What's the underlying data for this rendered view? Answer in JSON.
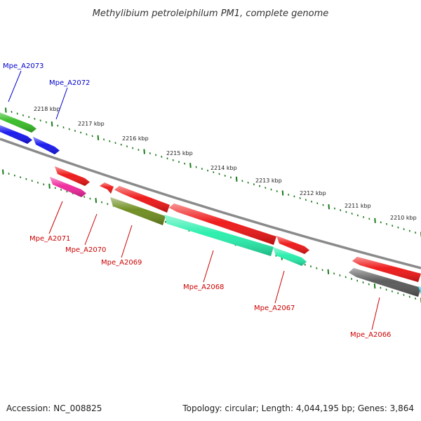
{
  "title": "Methylibium petroleiphilum PM1, complete genome",
  "footer": {
    "accession": "Accession: NC_008825",
    "summary": "Topology: circular; Length: 4,044,195 bp; Genes: 3,864"
  },
  "scale": {
    "unit": "kbp",
    "ticks": [
      "2218 kbp",
      "2217 kbp",
      "2216 kbp",
      "2215 kbp",
      "2214 kbp",
      "2213 kbp",
      "2212 kbp",
      "2211 kbp",
      "2210 kbp"
    ]
  },
  "colors": {
    "backbone": "#8a8a8a",
    "scale_tick": "#1a7a1a",
    "forward_label": "#0000cc",
    "reverse_label": "#cc0000",
    "green": "#33bb22",
    "blue": "#1111ee",
    "red": "#ee1111",
    "magenta": "#ee2299",
    "olive": "#6b8a1a",
    "teal": "#22eeaa",
    "grey": "#555555",
    "cyan": "#22ddee"
  },
  "genes": [
    {
      "name": "Mpe_A2073",
      "strand": "forward"
    },
    {
      "name": "Mpe_A2072",
      "strand": "forward"
    },
    {
      "name": "Mpe_A2071",
      "strand": "reverse"
    },
    {
      "name": "Mpe_A2070",
      "strand": "reverse"
    },
    {
      "name": "Mpe_A2069",
      "strand": "reverse"
    },
    {
      "name": "Mpe_A2068",
      "strand": "reverse"
    },
    {
      "name": "Mpe_A2067",
      "strand": "reverse"
    },
    {
      "name": "Mpe_A2066",
      "strand": "reverse"
    }
  ]
}
